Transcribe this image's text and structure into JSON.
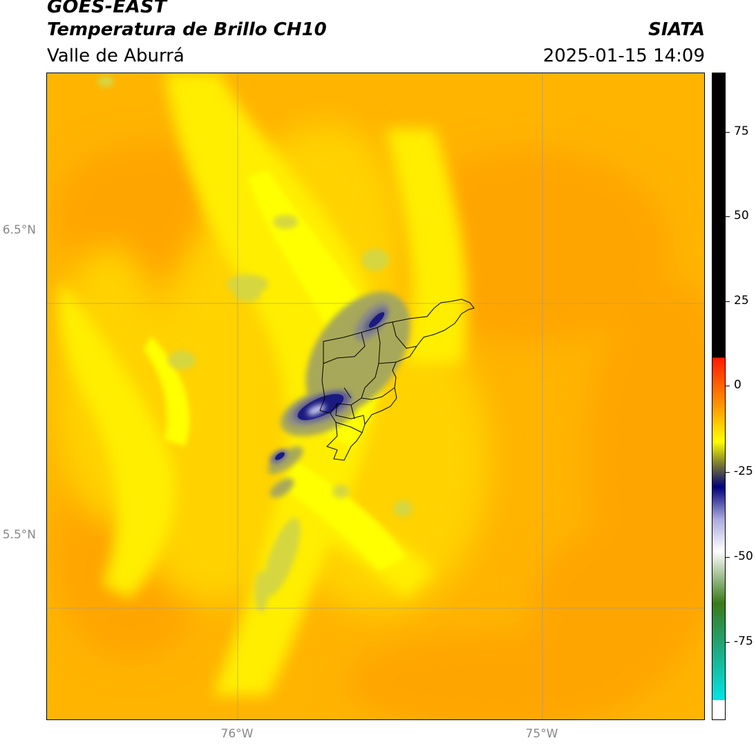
{
  "header": {
    "satellite": "GOES-EAST",
    "product": "Temperatura de Brillo CH10",
    "organization": "SIATA",
    "region": "Valle de Aburrá",
    "datetime": "2025-01-15 14:09"
  },
  "axes": {
    "lat_labels": [
      "6.5°N",
      "5.5°N"
    ],
    "lon_labels": [
      "76°W",
      "75°W"
    ]
  },
  "colorbar": {
    "ticks": [
      "75",
      "50",
      "25",
      "0",
      "-25",
      "-50",
      "-75"
    ],
    "colors": {
      "black": "#000000",
      "red": "#ff1a00",
      "orange": "#ffa000",
      "yellow": "#ffff00",
      "olive": "#8c8c2a",
      "navy": "#00007a",
      "lavender": "#aaaadd",
      "white": "#ffffff",
      "green": "#3a7a1a",
      "teal": "#1ab08c",
      "cyan": "#00e6e6"
    }
  },
  "map": {
    "background_color": "#ffb400",
    "field_colors": {
      "deep_orange": "#ffa500",
      "orange": "#ffbd00",
      "gold": "#ffd200",
      "yellow": "#ffee00",
      "bright_yellow": "#ffff00",
      "olive_light": "#d6d640",
      "olive": "#a8a85a",
      "gray": "#8a8a8a",
      "slate": "#5a5a8a",
      "navy": "#1a1a80",
      "lavender": "#c8c8ee"
    }
  }
}
